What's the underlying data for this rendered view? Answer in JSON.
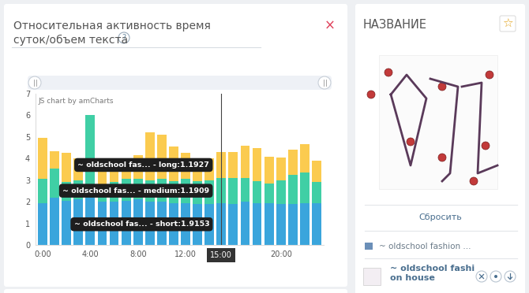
{
  "chart_data": {
    "type": "bar",
    "stacked": true,
    "title": "Относительная активность время\nсуток/объем текста",
    "categories": [
      "0:00",
      null,
      null,
      null,
      "4:00",
      null,
      null,
      null,
      "8:00",
      null,
      null,
      null,
      "12:00",
      null,
      null,
      null,
      null,
      null,
      null,
      null,
      "20:00",
      null,
      null,
      null
    ],
    "series": [
      {
        "name": "short",
        "color": "#3aa5dc",
        "values": [
          1.95,
          2.2,
          2.05,
          2.1,
          2.2,
          2.0,
          2.0,
          2.05,
          2.1,
          2.0,
          2.0,
          1.95,
          1.95,
          1.9,
          1.9,
          1.9153,
          1.9,
          2.0,
          1.95,
          1.95,
          1.9,
          1.9,
          1.95,
          1.95
        ]
      },
      {
        "name": "medium",
        "color": "#40cfa5",
        "values": [
          1.1,
          1.35,
          0.85,
          0.9,
          3.8,
          0.8,
          0.9,
          1.0,
          0.95,
          1.0,
          1.05,
          1.0,
          1.1,
          1.05,
          1.1,
          1.1909,
          1.2,
          1.1,
          1.0,
          0.9,
          1.1,
          1.35,
          1.4,
          0.95
        ]
      },
      {
        "name": "long",
        "color": "#fbcb4f",
        "values": [
          1.9,
          0.8,
          1.35,
          1.0,
          0.0,
          1.2,
          1.1,
          0.9,
          1.1,
          2.2,
          2.05,
          1.6,
          1.2,
          0.9,
          1.0,
          1.1927,
          1.2,
          1.5,
          1.55,
          1.25,
          1.05,
          1.15,
          1.3,
          1.0
        ]
      }
    ],
    "ylim": [
      0,
      7
    ],
    "yticks": [
      0,
      1,
      2,
      3,
      4,
      5,
      6,
      7
    ],
    "grid": false,
    "watermark": "JS chart by amCharts",
    "cursor": {
      "x": 15,
      "label": "15:00"
    },
    "tooltips": [
      {
        "series": "long",
        "text": "~ oldschool fas... - long:1.1927"
      },
      {
        "series": "medium",
        "text": "~ oldschool fas... - medium:1.1909"
      },
      {
        "series": "short",
        "text": "~ oldschool fas... - short:1.9153"
      }
    ]
  },
  "panel": {
    "help": "?",
    "close": "×"
  },
  "sidebar": {
    "title": "НАЗВАНИЕ",
    "star": "☆",
    "reset": "Сбросить",
    "source": "~ oldschool fashion ...",
    "item": [
      "~ oldschool fashi",
      "on house"
    ]
  }
}
